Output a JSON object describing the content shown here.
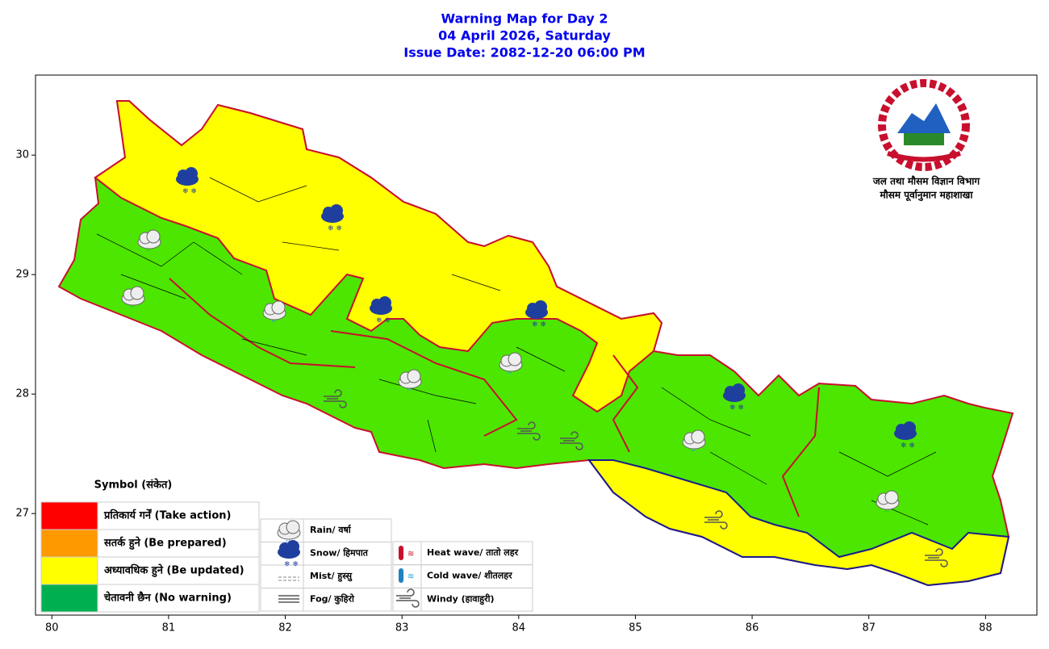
{
  "title": [
    "Warning Map for Day 2",
    "04 April 2026, Saturday",
    "Issue Date: 2082-12-20 06:00 PM"
  ],
  "map": {
    "xlim": [
      79.86,
      88.44
    ],
    "ylim": [
      26.15,
      30.67
    ],
    "xticks": [
      80,
      81,
      82,
      83,
      84,
      85,
      86,
      87,
      88
    ],
    "yticks": [
      27,
      28,
      29,
      30
    ]
  },
  "logo_text": [
    "जल तथा मौसम विज्ञान विभाग",
    "मौसम पूर्वानुमान महाशाखा"
  ],
  "legend": {
    "title": "Symbol (संकेत)",
    "levels": [
      {
        "color": "#ff0000",
        "label": "प्रतिकार्य गर्नें (Take action)"
      },
      {
        "color": "#ff9900",
        "label": "सतर्क हुने (Be prepared)"
      },
      {
        "color": "#ffff00",
        "label": "अध्यावधिक हुने (Be updated)"
      },
      {
        "color": "#00b050",
        "label": "चेतावनी छैन (No warning)"
      }
    ],
    "symbols": [
      "Rain/ वर्षा",
      "Snow/ हिमपात",
      "Mist/ हुस्सु",
      "Fog/ कुहिरो"
    ],
    "symbols2": [
      "Heat wave/ तातो लहर",
      "Cold wave/ शीतलहर",
      "Windy (हावाहुरी)"
    ]
  }
}
